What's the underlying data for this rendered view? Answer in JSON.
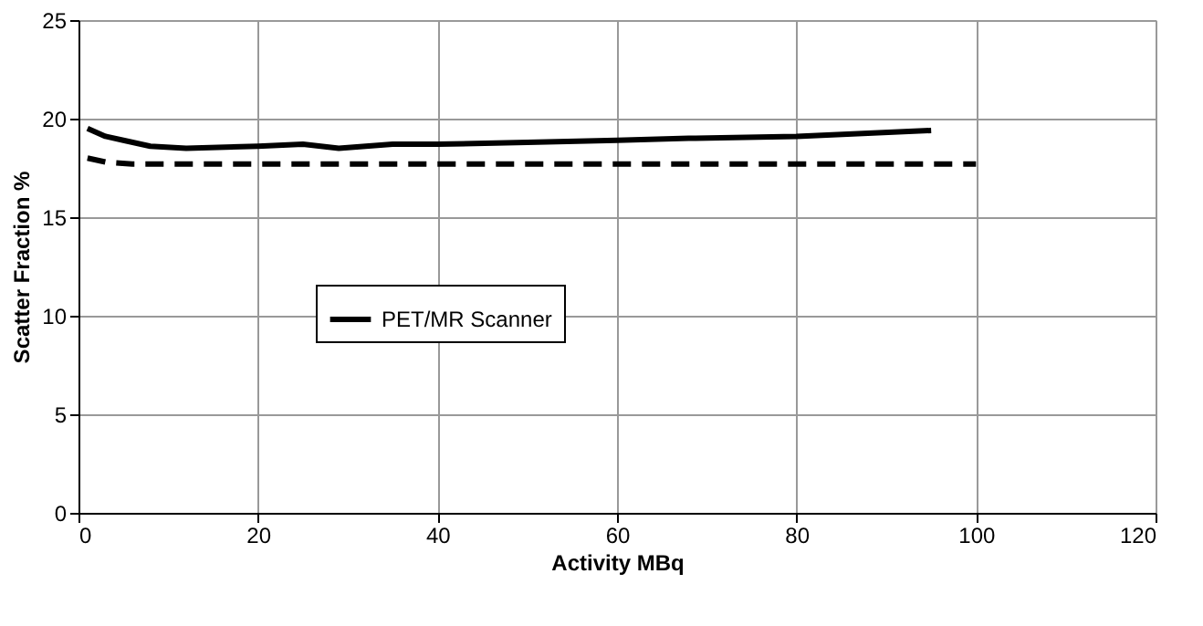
{
  "chart_data": {
    "type": "line",
    "xlabel": "Activity MBq",
    "ylabel": "Scatter Fraction %",
    "xlim": [
      0,
      120
    ],
    "xticks": [
      0,
      20,
      40,
      60,
      80,
      100,
      120
    ],
    "ylim": [
      0,
      25
    ],
    "yticks": [
      0,
      5,
      10,
      15,
      20,
      25
    ],
    "grid": true,
    "legend": "center",
    "marker": "none",
    "series": [
      {
        "name": "PET/MR Scanner",
        "color": "#000000",
        "line_style": "solid",
        "x": [
          1,
          3,
          5,
          8,
          12,
          20,
          25,
          29,
          35,
          40,
          50,
          60,
          68,
          80,
          95
        ],
        "values": [
          19.5,
          19.1,
          18.9,
          18.6,
          18.5,
          18.6,
          18.7,
          18.5,
          18.7,
          18.7,
          18.8,
          18.9,
          19.0,
          19.1,
          19.4
        ]
      },
      {
        "color": "#000000",
        "line_style": "dashed",
        "x": [
          1,
          3,
          6,
          100
        ],
        "values": [
          18.0,
          17.8,
          17.7,
          17.7
        ]
      }
    ]
  }
}
